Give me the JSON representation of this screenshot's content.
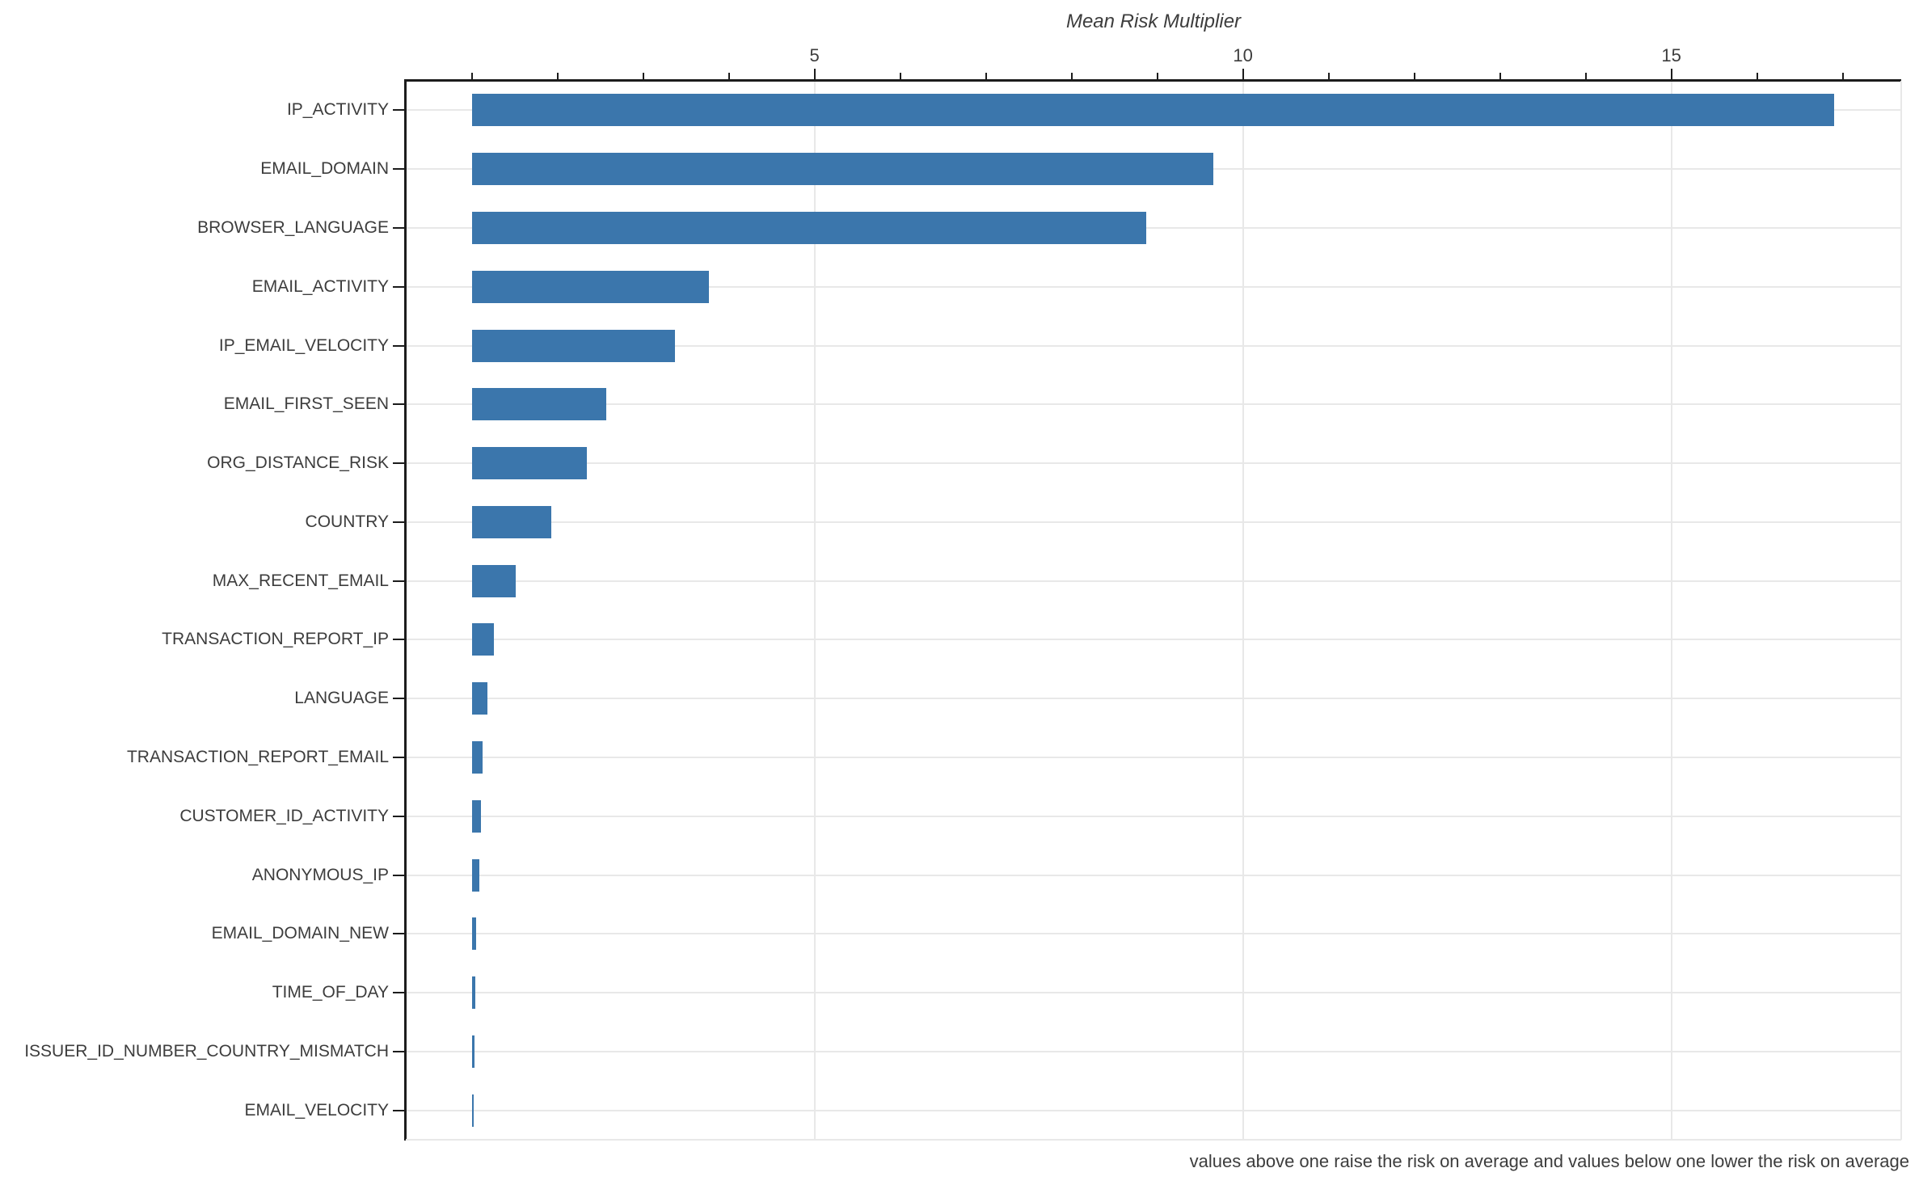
{
  "chart_data": {
    "type": "bar",
    "orientation": "horizontal",
    "title": "Mean Risk Multiplier",
    "caption": "values above one raise the risk on average and values below one lower the risk on average",
    "categories": [
      "IP_ACTIVITY",
      "EMAIL_DOMAIN",
      "BROWSER_LANGUAGE",
      "EMAIL_ACTIVITY",
      "IP_EMAIL_VELOCITY",
      "EMAIL_FIRST_SEEN",
      "ORG_DISTANCE_RISK",
      "COUNTRY",
      "MAX_RECENT_EMAIL",
      "TRANSACTION_REPORT_IP",
      "LANGUAGE",
      "TRANSACTION_REPORT_EMAIL",
      "CUSTOMER_ID_ACTIVITY",
      "ANONYMOUS_IP",
      "EMAIL_DOMAIN_NEW",
      "TIME_OF_DAY",
      "ISSUER_ID_NUMBER_COUNTRY_MISMATCH",
      "EMAIL_VELOCITY"
    ],
    "values": [
      16.9,
      9.65,
      8.87,
      3.77,
      3.37,
      2.57,
      2.34,
      1.93,
      1.51,
      1.26,
      1.18,
      1.13,
      1.11,
      1.09,
      1.05,
      1.04,
      1.03,
      1.02
    ],
    "bar_baseline": 1,
    "xlabel": "",
    "ylabel": "",
    "xlim": [
      0.23,
      17.68
    ],
    "xticks_major": [
      5,
      10,
      15
    ],
    "xticks_minor_from": 1,
    "xticks_minor_to": 17,
    "xticks_minor_step": 1,
    "tick_side": "top",
    "grid": "on",
    "legend": null,
    "colors": {
      "bar": "#3B76AC",
      "grid": "#e8e8e8",
      "axis": "#1c1c1c",
      "text": "#3d3d3d"
    }
  }
}
